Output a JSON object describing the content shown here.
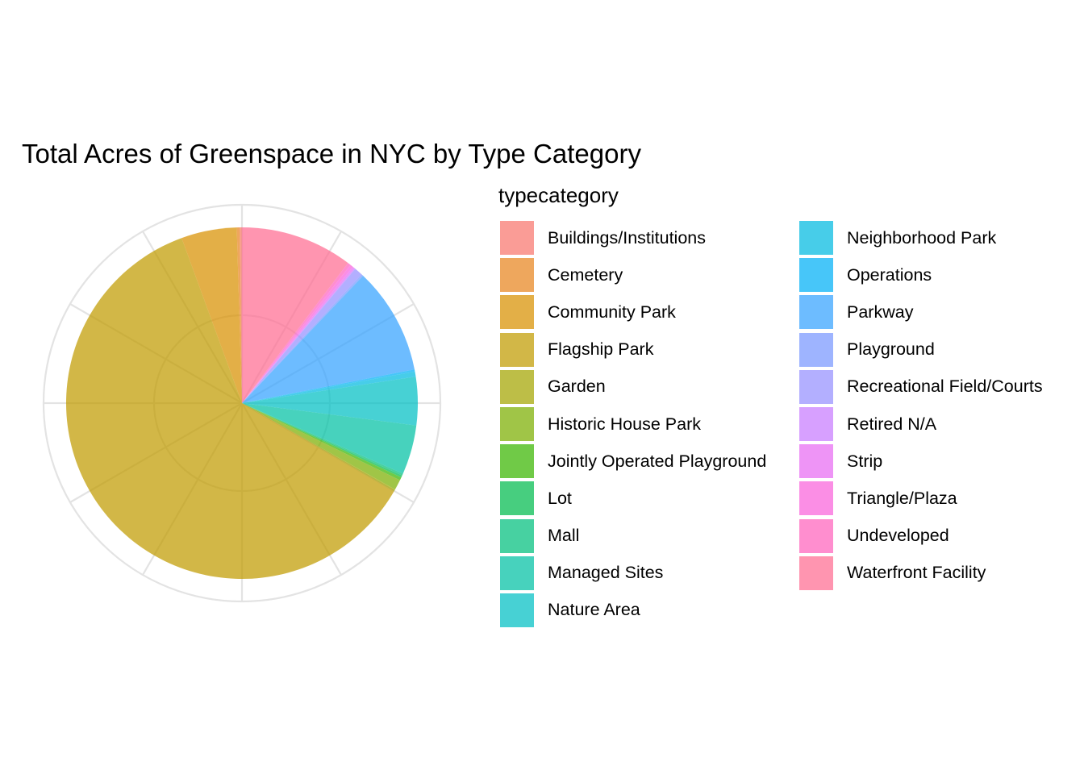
{
  "chart_data": {
    "type": "pie",
    "title": "Total Acres of Greenspace in NYC by Type Category",
    "legend_title": "typecategory",
    "legend_position": "right",
    "grid": true,
    "units": "acres (share of total, estimated)",
    "slices": [
      {
        "label": "Buildings/Institutions",
        "value": 0.2,
        "color": "#F8766D"
      },
      {
        "label": "Cemetery",
        "value": 0.3,
        "color": "#E7851E"
      },
      {
        "label": "Community Park",
        "value": 5.4,
        "color": "#D89000"
      },
      {
        "label": "Flagship Park",
        "value": 64.6,
        "color": "#C09B00"
      },
      {
        "label": "Garden",
        "value": 0.2,
        "color": "#A3A500"
      },
      {
        "label": "Historic House Park",
        "value": 1.0,
        "color": "#7CAE00"
      },
      {
        "label": "Jointly Operated Playground",
        "value": 0.3,
        "color": "#39B600"
      },
      {
        "label": "Lot",
        "value": 0.2,
        "color": "#00BB4E"
      },
      {
        "label": "Mall",
        "value": 0.2,
        "color": "#00BF7D"
      },
      {
        "label": "Managed Sites",
        "value": 4.8,
        "color": "#00C1A3"
      },
      {
        "label": "Nature Area",
        "value": 4.7,
        "color": "#00BFC4"
      },
      {
        "label": "Neighborhood Park",
        "value": 0.5,
        "color": "#00BAE0"
      },
      {
        "label": "Operations",
        "value": 0.2,
        "color": "#00B0F6"
      },
      {
        "label": "Parkway",
        "value": 10.4,
        "color": "#35A2FF"
      },
      {
        "label": "Playground",
        "value": 0.2,
        "color": "#7997FF"
      },
      {
        "label": "Recreational Field/Courts",
        "value": 0.8,
        "color": "#9590FF"
      },
      {
        "label": "Retired N/A",
        "value": 0.1,
        "color": "#C77CFF"
      },
      {
        "label": "Strip",
        "value": 0.2,
        "color": "#E76BF3"
      },
      {
        "label": "Triangle/Plaza",
        "value": 0.3,
        "color": "#FA62DB"
      },
      {
        "label": "Undeveloped",
        "value": 0.3,
        "color": "#FF62BC"
      },
      {
        "label": "Waterfront Facility",
        "value": 10.9,
        "color": "#FF6C91"
      }
    ]
  }
}
